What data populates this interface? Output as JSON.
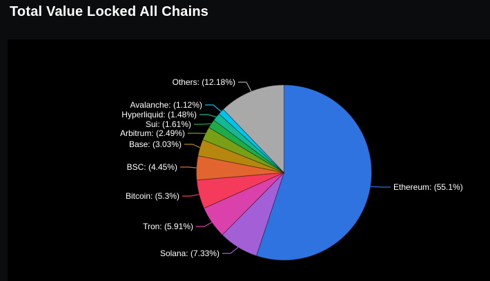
{
  "page": {
    "title": "Total Value Locked All Chains"
  },
  "chart_data": {
    "type": "pie",
    "title": "Total Value Locked All Chains",
    "unit": "percent",
    "start_angle_deg": 0,
    "direction": "clockwise",
    "label_format": "{name}: ({value}%)",
    "slices": [
      {
        "label": "Ethereum",
        "value": 55.1,
        "color": "#2e73e0"
      },
      {
        "label": "Solana",
        "value": 7.33,
        "color": "#a35fd6"
      },
      {
        "label": "Tron",
        "value": 5.91,
        "color": "#da41ab"
      },
      {
        "label": "Bitcoin",
        "value": 5.3,
        "color": "#f43b5c"
      },
      {
        "label": "BSC",
        "value": 4.45,
        "color": "#e2652f"
      },
      {
        "label": "Base",
        "value": 3.03,
        "color": "#b5870f"
      },
      {
        "label": "Arbitrum",
        "value": 2.49,
        "color": "#77a016"
      },
      {
        "label": "Sui",
        "value": 1.61,
        "color": "#1fab47"
      },
      {
        "label": "Hyperliquid",
        "value": 1.48,
        "color": "#15b795"
      },
      {
        "label": "Avalanche",
        "value": 1.12,
        "color": "#00c3ee"
      },
      {
        "label": "Others",
        "value": 12.18,
        "color": "#a9a9a9"
      }
    ],
    "colors": {
      "outer_background": "#0a0c0e",
      "panel_background": "#000000",
      "label_text": "#ffffff"
    }
  }
}
